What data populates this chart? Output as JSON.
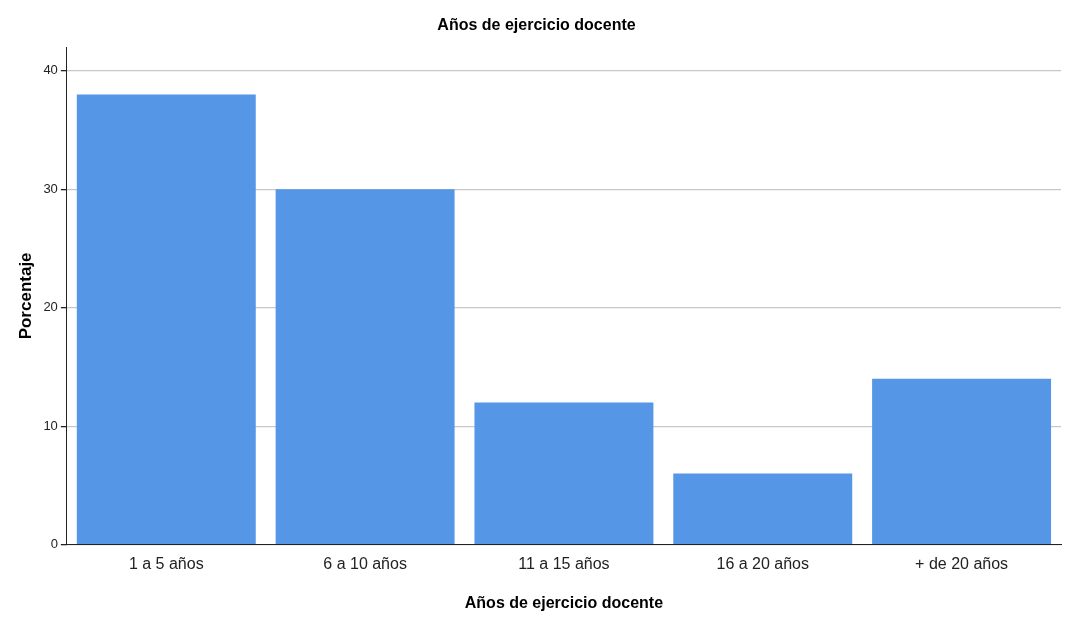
{
  "chart_data": {
    "type": "bar",
    "title": "Años de ejercicio docente",
    "xlabel": "Años de ejercicio docente",
    "ylabel": "Porcentaje",
    "categories": [
      "1 a 5 años",
      "6 a 10 años",
      "11 a 15 años",
      "16 a 20 años",
      "+ de 20 años"
    ],
    "values": [
      38,
      30,
      12,
      6,
      14
    ],
    "color": "#5596e6",
    "ylim": [
      0,
      42
    ],
    "yticks": [
      0,
      10,
      20,
      30,
      40
    ],
    "grid": "y",
    "legend": false
  }
}
